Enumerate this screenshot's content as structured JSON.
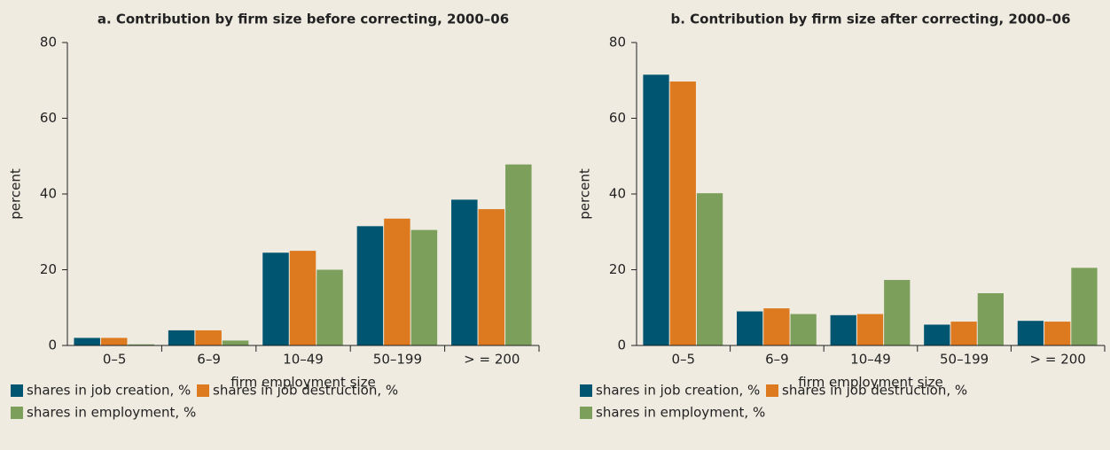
{
  "chart_data": [
    {
      "type": "bar",
      "title": "a.  Contribution by firm size before correcting, 2000–06",
      "xlabel": "firm employment size",
      "ylabel": "percent",
      "categories": [
        "0–5",
        "6–9",
        "10–49",
        "50–199",
        "> = 200"
      ],
      "series": [
        {
          "name": "shares in job creation, %",
          "color": "#005670",
          "values": [
            2,
            4,
            24.5,
            31.5,
            38.5
          ]
        },
        {
          "name": "shares in job destruction, %",
          "color": "#dd7a1f",
          "values": [
            2,
            4,
            25,
            33.5,
            36
          ]
        },
        {
          "name": "shares in employment, %",
          "color": "#7ca05b",
          "values": [
            0.3,
            1.3,
            20,
            30.5,
            47.8
          ]
        }
      ],
      "ylim": [
        0,
        80
      ],
      "yticks": [
        0,
        20,
        40,
        60,
        80
      ]
    },
    {
      "type": "bar",
      "title": "b.  Contribution by firm size after correcting, 2000–06",
      "xlabel": "firm employment size",
      "ylabel": "percent",
      "categories": [
        "0–5",
        "6–9",
        "10–49",
        "50–199",
        "> = 200"
      ],
      "series": [
        {
          "name": "shares in job creation, %",
          "color": "#005670",
          "values": [
            71.5,
            9,
            8,
            5.5,
            6.5
          ]
        },
        {
          "name": "shares in job destruction, %",
          "color": "#dd7a1f",
          "values": [
            69.7,
            9.8,
            8.3,
            6.3,
            6.3
          ]
        },
        {
          "name": "shares in employment, %",
          "color": "#7ca05b",
          "values": [
            40.2,
            8.3,
            17.3,
            13.8,
            20.5
          ]
        }
      ],
      "ylim": [
        0,
        80
      ],
      "yticks": [
        0,
        20,
        40,
        60,
        80
      ]
    }
  ]
}
